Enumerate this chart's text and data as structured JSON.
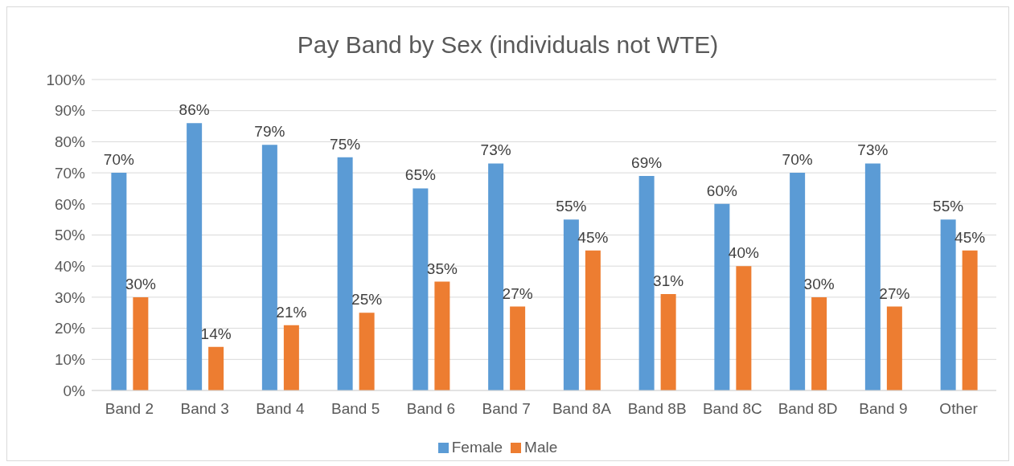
{
  "chart_data": {
    "type": "bar",
    "title": "Pay Band by Sex (individuals not WTE)",
    "categories": [
      "Band 2",
      "Band 3",
      "Band 4",
      "Band 5",
      "Band 6",
      "Band 7",
      "Band 8A",
      "Band 8B",
      "Band 8C",
      "Band 8D",
      "Band 9",
      "Other"
    ],
    "series": [
      {
        "name": "Female",
        "color": "#5b9bd5",
        "values": [
          70,
          86,
          79,
          75,
          65,
          73,
          55,
          69,
          60,
          70,
          73,
          55
        ],
        "value_labels": [
          "70%",
          "86%",
          "79%",
          "75%",
          "65%",
          "73%",
          "55%",
          "69%",
          "60%",
          "70%",
          "73%",
          "55%"
        ]
      },
      {
        "name": "Male",
        "color": "#ed7d31",
        "values": [
          30,
          14,
          21,
          25,
          35,
          27,
          45,
          31,
          40,
          30,
          27,
          45
        ],
        "value_labels": [
          "30%",
          "14%",
          "21%",
          "25%",
          "35%",
          "27%",
          "45%",
          "31%",
          "40%",
          "30%",
          "27%",
          "45%"
        ]
      }
    ],
    "ylim": [
      0,
      100
    ],
    "yticks": [
      {
        "value": 0,
        "label": "0%"
      },
      {
        "value": 10,
        "label": "10%"
      },
      {
        "value": 20,
        "label": "20%"
      },
      {
        "value": 30,
        "label": "30%"
      },
      {
        "value": 40,
        "label": "40%"
      },
      {
        "value": 50,
        "label": "50%"
      },
      {
        "value": 60,
        "label": "60%"
      },
      {
        "value": 70,
        "label": "70%"
      },
      {
        "value": 80,
        "label": "80%"
      },
      {
        "value": 90,
        "label": "90%"
      },
      {
        "value": 100,
        "label": "100%"
      }
    ],
    "grid": "y",
    "legend": "bottom"
  }
}
